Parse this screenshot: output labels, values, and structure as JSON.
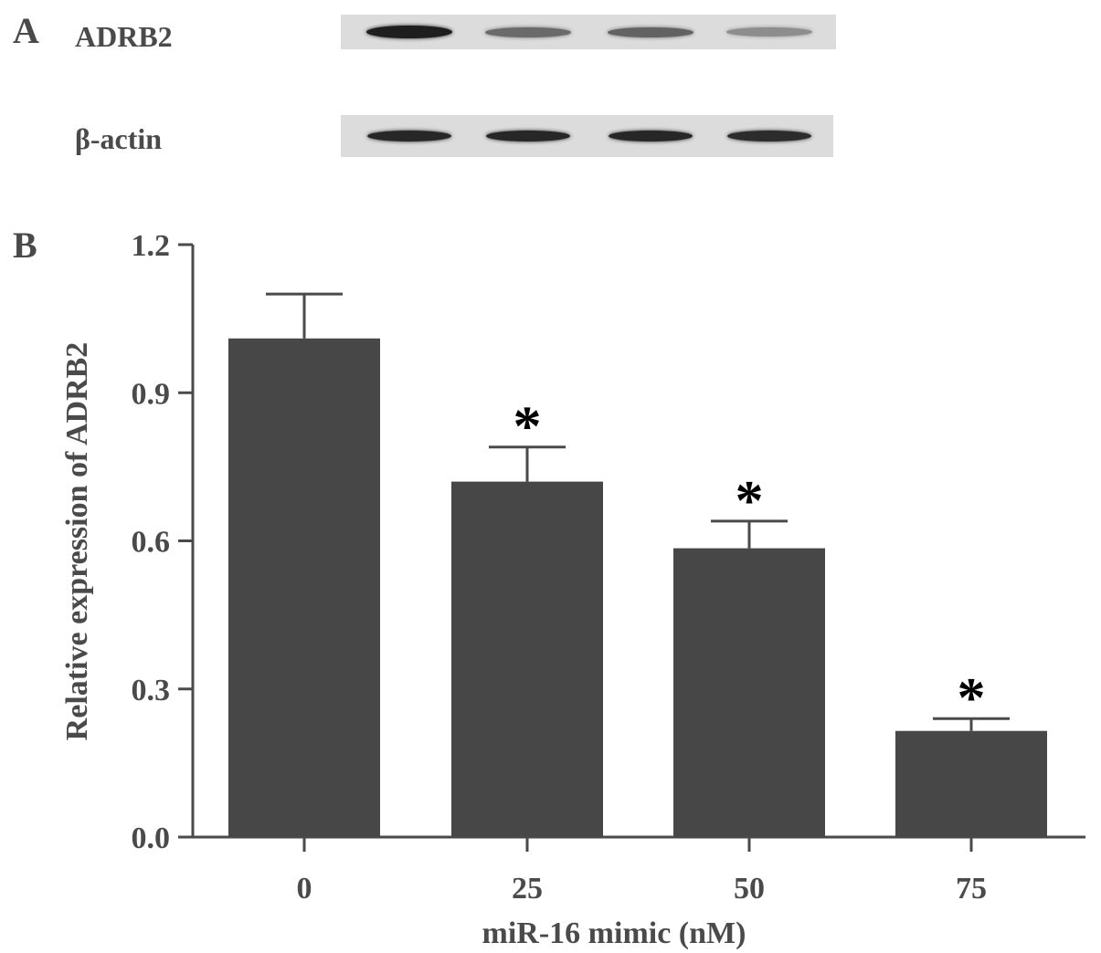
{
  "panel_a": {
    "letter": "A",
    "rows": [
      {
        "label": "ADRB2",
        "intensities": [
          1.0,
          0.55,
          0.6,
          0.35
        ]
      },
      {
        "label": "β-actin",
        "intensities": [
          0.95,
          0.95,
          0.95,
          0.92
        ]
      }
    ]
  },
  "panel_b": {
    "letter": "B"
  },
  "chart_data": {
    "type": "bar",
    "categories": [
      "0",
      "25",
      "50",
      "75"
    ],
    "values": [
      1.01,
      0.72,
      0.585,
      0.215
    ],
    "errors": [
      0.09,
      0.07,
      0.055,
      0.025
    ],
    "significance": [
      "",
      "*",
      "*",
      "*"
    ],
    "xlabel": "miR-16 mimic (nM)",
    "ylabel": "Relative expression of ADRB2",
    "ylim": [
      0,
      1.2
    ],
    "yticks": [
      "0.0",
      "0.3",
      "0.6",
      "0.9",
      "1.2"
    ],
    "grid": false,
    "bar_color": "#474747"
  }
}
